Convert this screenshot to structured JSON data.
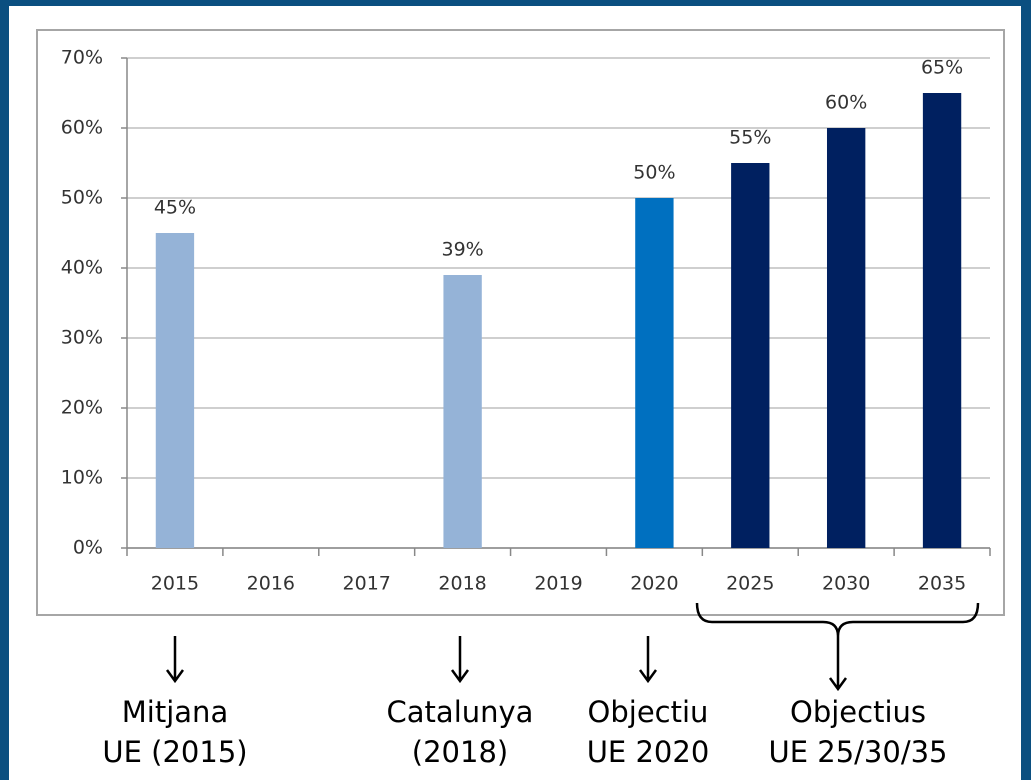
{
  "chart_data": {
    "type": "bar",
    "categories": [
      "2015",
      "2016",
      "2017",
      "2018",
      "2019",
      "2020",
      "2025",
      "2030",
      "2035"
    ],
    "values": [
      45,
      null,
      null,
      39,
      null,
      50,
      55,
      60,
      65
    ],
    "value_labels": [
      "45%",
      null,
      null,
      "39%",
      null,
      "50%",
      "55%",
      "60%",
      "65%"
    ],
    "colors": [
      "#95b3d7",
      null,
      null,
      "#95b3d7",
      null,
      "#0070c0",
      "#002060",
      "#002060",
      "#002060"
    ],
    "ylim": [
      0,
      70
    ],
    "yticks": [
      {
        "value": 0,
        "label": "0%"
      },
      {
        "value": 10,
        "label": "10%"
      },
      {
        "value": 20,
        "label": "20%"
      },
      {
        "value": 30,
        "label": "30%"
      },
      {
        "value": 40,
        "label": "40%"
      },
      {
        "value": 50,
        "label": "50%"
      },
      {
        "value": 60,
        "label": "60%"
      },
      {
        "value": 70,
        "label": "70%"
      }
    ],
    "grid": true,
    "annotations": [
      {
        "lines": [
          "Mitjana",
          "UE (2015)"
        ]
      },
      {
        "lines": [
          "Catalunya",
          "(2018)"
        ]
      },
      {
        "lines": [
          "Objectiu",
          "UE 2020"
        ]
      },
      {
        "lines": [
          "Objectius",
          "UE 25/30/35"
        ]
      }
    ]
  }
}
